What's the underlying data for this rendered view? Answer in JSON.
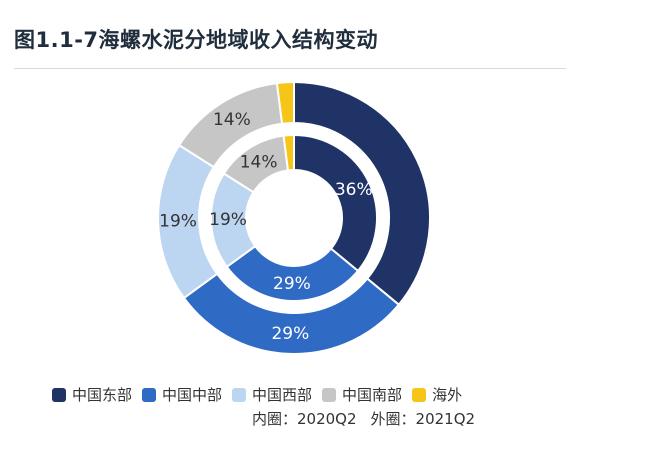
{
  "title": "图1.1-7海螺水泥分地域收入结构变动",
  "chart_data": {
    "type": "pie",
    "donut": true,
    "categories": [
      "中国东部",
      "中国中部",
      "中国西部",
      "中国南部",
      "海外"
    ],
    "colors": [
      "#1f3366",
      "#2f6bc4",
      "#bcd5f0",
      "#c6c6c6",
      "#f5c518"
    ],
    "label_colors": [
      "#ffffff",
      "#ffffff",
      "#333333",
      "#333333",
      "#333333"
    ],
    "series": [
      {
        "name": "2020Q2",
        "ring": "inner",
        "values": [
          36,
          29,
          19,
          14,
          2
        ],
        "labels": [
          "36%",
          "29%",
          "19%",
          "14%",
          ""
        ]
      },
      {
        "name": "2021Q2",
        "ring": "outer",
        "values": [
          36,
          29,
          19,
          14,
          2
        ],
        "labels": [
          "",
          "29%",
          "19%",
          "14%",
          ""
        ]
      }
    ],
    "legend_position": "bottom"
  },
  "note": {
    "inner": "内圈：2020Q2",
    "outer": "外圈：2021Q2"
  }
}
